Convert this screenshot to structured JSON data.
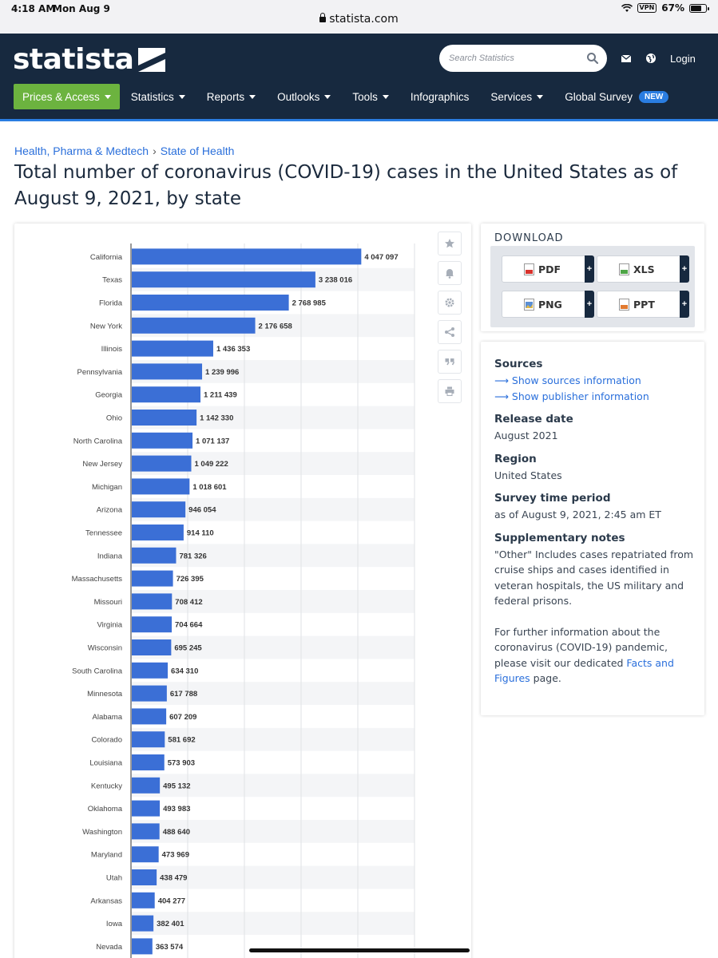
{
  "status_bar": {
    "time": "4:18 AM",
    "date": "Mon Aug 9",
    "url": "statista.com",
    "vpn": "VPN",
    "battery": "67%"
  },
  "header": {
    "logo": "statista",
    "search_placeholder": "Search Statistics",
    "login": "Login",
    "nav": [
      {
        "label": "Prices & Access",
        "dropdown": true
      },
      {
        "label": "Statistics",
        "dropdown": true
      },
      {
        "label": "Reports",
        "dropdown": true
      },
      {
        "label": "Outlooks",
        "dropdown": true
      },
      {
        "label": "Tools",
        "dropdown": true
      },
      {
        "label": "Infographics",
        "dropdown": false
      },
      {
        "label": "Services",
        "dropdown": true
      },
      {
        "label": "Global Survey",
        "dropdown": false
      }
    ],
    "new_badge": "NEW",
    "accent": "#6cb33f",
    "bg": "#17293f"
  },
  "breadcrumb": [
    "Health, Pharma & Medtech",
    "State of Health"
  ],
  "title": "Total number of coronavirus (COVID-19) cases in the United States as of August 9, 2021, by state",
  "chart_data": {
    "type": "bar",
    "orientation": "horizontal",
    "bar_color": "#3b6fd6",
    "categories": [
      "California",
      "Texas",
      "Florida",
      "New York",
      "Illinois",
      "Pennsylvania",
      "Georgia",
      "Ohio",
      "North Carolina",
      "New Jersey",
      "Michigan",
      "Arizona",
      "Tennessee",
      "Indiana",
      "Massachusetts",
      "Missouri",
      "Virginia",
      "Wisconsin",
      "South Carolina",
      "Minnesota",
      "Alabama",
      "Colorado",
      "Louisiana",
      "Kentucky",
      "Oklahoma",
      "Washington",
      "Maryland",
      "Utah",
      "Arkansas",
      "Iowa",
      "Nevada"
    ],
    "values": [
      4047097,
      3238016,
      2768985,
      2176658,
      1436353,
      1239996,
      1211439,
      1142330,
      1071137,
      1049222,
      1018601,
      946054,
      914110,
      781326,
      726395,
      708412,
      704664,
      695245,
      634310,
      617788,
      607209,
      581692,
      573903,
      495132,
      493983,
      488640,
      473969,
      438479,
      404277,
      382401,
      363574
    ],
    "value_labels": [
      "4 047 097",
      "3 238 016",
      "2 768 985",
      "2 176 658",
      "1 436 353",
      "1 239 996",
      "1 211 439",
      "1 142 330",
      "1 071 137",
      "1 049 222",
      "1 018 601",
      "946 054",
      "914 110",
      "781 326",
      "726 395",
      "708 412",
      "704 664",
      "695 245",
      "634 310",
      "617 788",
      "607 209",
      "581 692",
      "573 903",
      "495 132",
      "493 983",
      "488 640",
      "473 969",
      "438 479",
      "404 277",
      "382 401",
      "363 574"
    ],
    "xlim": [
      0,
      5000000
    ],
    "grid": true
  },
  "chart_tools": [
    "star-icon",
    "bell-icon",
    "gear-icon",
    "share-icon",
    "quote-icon",
    "print-icon"
  ],
  "download": {
    "title": "DOWNLOAD",
    "buttons": [
      "PDF",
      "XLS",
      "PNG",
      "PPT"
    ],
    "plus": "+"
  },
  "info": {
    "sources_h": "Sources",
    "sources_link1": "Show sources information",
    "sources_link2": "Show publisher information",
    "release_h": "Release date",
    "release_v": "August 2021",
    "region_h": "Region",
    "region_v": "United States",
    "period_h": "Survey time period",
    "period_v": "as of August 9, 2021, 2:45 am ET",
    "notes_h": "Supplementary notes",
    "notes_v": "\"Other\" Includes cases repatriated from cruise ships and cases identified in veteran hospitals, the US military and federal prisons.",
    "further_pre": "For further information about the coronavirus (COVID-19) pandemic, please visit our dedicated ",
    "further_link": "Facts and Figures",
    "further_post": " page."
  }
}
